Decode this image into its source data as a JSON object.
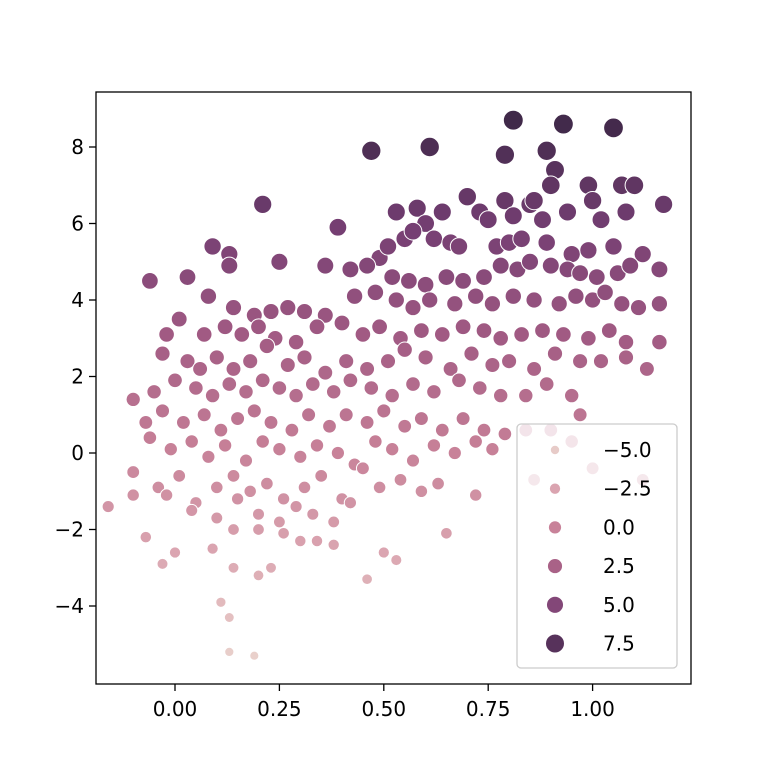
{
  "chart_data": {
    "type": "scatter",
    "title": "",
    "xlabel": "",
    "ylabel": "",
    "xlim": [
      -0.2,
      1.2
    ],
    "ylim": [
      -6,
      9.5
    ],
    "x_ticks": [
      0.0,
      0.25,
      0.5,
      0.75,
      1.0
    ],
    "x_tick_labels": [
      "0.00",
      "0.25",
      "0.50",
      "0.75",
      "1.00"
    ],
    "y_ticks": [
      -4,
      -2,
      0,
      2,
      4,
      6,
      8
    ],
    "y_tick_labels": [
      "−4",
      "−2",
      "0",
      "2",
      "4",
      "6",
      "8"
    ],
    "grid": false,
    "legend": {
      "placement": "lower right",
      "entries": [
        {
          "label": "−5.0",
          "value": -5.0
        },
        {
          "label": "−2.5",
          "value": -2.5
        },
        {
          "label": "0.0",
          "value": 0.0
        },
        {
          "label": "2.5",
          "value": 2.5
        },
        {
          "label": "5.0",
          "value": 5.0
        },
        {
          "label": "7.5",
          "value": 7.5
        }
      ]
    },
    "hue_size_encodes": "y",
    "colormap": [
      "#ead3cd",
      "#dba6b1",
      "#c67f97",
      "#a15a83",
      "#743e72",
      "#3e2848"
    ],
    "points": [
      [
        -0.06,
        4.5
      ],
      [
        0.03,
        4.6
      ],
      [
        0.09,
        5.4
      ],
      [
        0.13,
        5.2
      ],
      [
        0.13,
        4.9
      ],
      [
        0.21,
        6.5
      ],
      [
        0.25,
        5.0
      ],
      [
        0.36,
        4.9
      ],
      [
        0.39,
        5.9
      ],
      [
        0.47,
        7.9
      ],
      [
        0.61,
        8.0
      ],
      [
        0.81,
        8.7
      ],
      [
        0.93,
        8.6
      ],
      [
        1.05,
        8.5
      ],
      [
        0.79,
        7.8
      ],
      [
        0.89,
        7.9
      ],
      [
        0.91,
        7.4
      ],
      [
        0.9,
        7.0
      ],
      [
        0.99,
        7.0
      ],
      [
        1.07,
        7.0
      ],
      [
        1.1,
        7.0
      ],
      [
        1.17,
        6.5
      ],
      [
        0.7,
        6.7
      ],
      [
        0.79,
        6.6
      ],
      [
        0.85,
        6.5
      ],
      [
        0.86,
        6.6
      ],
      [
        0.94,
        6.3
      ],
      [
        1.0,
        6.6
      ],
      [
        1.08,
        6.3
      ],
      [
        0.53,
        6.3
      ],
      [
        0.58,
        6.4
      ],
      [
        0.6,
        6.0
      ],
      [
        0.64,
        6.3
      ],
      [
        0.73,
        6.3
      ],
      [
        0.75,
        6.1
      ],
      [
        0.81,
        6.2
      ],
      [
        0.88,
        6.1
      ],
      [
        1.02,
        6.1
      ],
      [
        0.49,
        5.1
      ],
      [
        0.51,
        5.4
      ],
      [
        0.55,
        5.6
      ],
      [
        0.57,
        5.8
      ],
      [
        0.62,
        5.6
      ],
      [
        0.66,
        5.5
      ],
      [
        0.68,
        5.4
      ],
      [
        0.77,
        5.4
      ],
      [
        0.8,
        5.5
      ],
      [
        0.83,
        5.6
      ],
      [
        0.89,
        5.5
      ],
      [
        0.95,
        5.2
      ],
      [
        0.99,
        5.3
      ],
      [
        1.05,
        5.4
      ],
      [
        1.12,
        5.2
      ],
      [
        0.42,
        4.8
      ],
      [
        0.46,
        4.9
      ],
      [
        0.52,
        4.6
      ],
      [
        0.56,
        4.5
      ],
      [
        0.6,
        4.4
      ],
      [
        0.65,
        4.6
      ],
      [
        0.69,
        4.5
      ],
      [
        0.74,
        4.6
      ],
      [
        0.78,
        4.9
      ],
      [
        0.82,
        4.8
      ],
      [
        0.85,
        5.0
      ],
      [
        0.9,
        4.9
      ],
      [
        0.94,
        4.8
      ],
      [
        0.97,
        4.7
      ],
      [
        1.01,
        4.6
      ],
      [
        1.06,
        4.7
      ],
      [
        1.09,
        4.9
      ],
      [
        1.16,
        4.8
      ],
      [
        0.08,
        4.1
      ],
      [
        0.14,
        3.8
      ],
      [
        0.19,
        3.6
      ],
      [
        0.23,
        3.7
      ],
      [
        0.27,
        3.8
      ],
      [
        0.31,
        3.7
      ],
      [
        0.36,
        3.6
      ],
      [
        0.43,
        4.1
      ],
      [
        0.48,
        4.2
      ],
      [
        0.53,
        4.0
      ],
      [
        0.57,
        3.8
      ],
      [
        0.61,
        4.0
      ],
      [
        0.67,
        3.9
      ],
      [
        0.72,
        4.1
      ],
      [
        0.76,
        3.9
      ],
      [
        0.81,
        4.1
      ],
      [
        0.86,
        4.0
      ],
      [
        0.92,
        3.9
      ],
      [
        0.96,
        4.1
      ],
      [
        1.0,
        4.0
      ],
      [
        1.03,
        4.2
      ],
      [
        1.07,
        3.9
      ],
      [
        1.11,
        3.8
      ],
      [
        1.16,
        3.9
      ],
      [
        -0.02,
        3.1
      ],
      [
        0.01,
        3.5
      ],
      [
        0.07,
        3.1
      ],
      [
        0.12,
        3.3
      ],
      [
        0.16,
        3.1
      ],
      [
        0.2,
        3.3
      ],
      [
        0.24,
        3.0
      ],
      [
        0.29,
        2.9
      ],
      [
        0.34,
        3.3
      ],
      [
        0.4,
        3.4
      ],
      [
        0.45,
        3.1
      ],
      [
        0.49,
        3.3
      ],
      [
        0.54,
        3.0
      ],
      [
        0.59,
        3.2
      ],
      [
        0.64,
        3.1
      ],
      [
        0.69,
        3.3
      ],
      [
        0.74,
        3.2
      ],
      [
        0.78,
        3.0
      ],
      [
        0.83,
        3.1
      ],
      [
        0.88,
        3.2
      ],
      [
        0.93,
        3.1
      ],
      [
        0.99,
        3.0
      ],
      [
        1.04,
        3.2
      ],
      [
        1.08,
        2.9
      ],
      [
        1.16,
        2.9
      ],
      [
        -0.03,
        2.6
      ],
      [
        0.03,
        2.4
      ],
      [
        0.06,
        2.2
      ],
      [
        0.1,
        2.5
      ],
      [
        0.14,
        2.2
      ],
      [
        0.18,
        2.4
      ],
      [
        0.22,
        2.8
      ],
      [
        0.27,
        2.3
      ],
      [
        0.31,
        2.5
      ],
      [
        0.36,
        2.1
      ],
      [
        0.41,
        2.4
      ],
      [
        0.46,
        2.2
      ],
      [
        0.51,
        2.4
      ],
      [
        0.55,
        2.7
      ],
      [
        0.6,
        2.5
      ],
      [
        0.66,
        2.2
      ],
      [
        0.71,
        2.6
      ],
      [
        0.76,
        2.3
      ],
      [
        0.8,
        2.4
      ],
      [
        0.86,
        2.2
      ],
      [
        0.91,
        2.6
      ],
      [
        0.97,
        2.4
      ],
      [
        1.02,
        2.4
      ],
      [
        1.08,
        2.5
      ],
      [
        1.13,
        2.2
      ],
      [
        -0.1,
        1.4
      ],
      [
        -0.05,
        1.6
      ],
      [
        0.0,
        1.9
      ],
      [
        0.05,
        1.7
      ],
      [
        0.09,
        1.5
      ],
      [
        0.13,
        1.8
      ],
      [
        0.17,
        1.6
      ],
      [
        0.21,
        1.9
      ],
      [
        0.25,
        1.7
      ],
      [
        0.29,
        1.5
      ],
      [
        0.33,
        1.8
      ],
      [
        0.38,
        1.6
      ],
      [
        0.42,
        1.9
      ],
      [
        0.47,
        1.7
      ],
      [
        0.52,
        1.5
      ],
      [
        0.57,
        1.8
      ],
      [
        0.62,
        1.6
      ],
      [
        0.68,
        1.9
      ],
      [
        0.73,
        1.7
      ],
      [
        0.78,
        1.5
      ],
      [
        0.84,
        1.5
      ],
      [
        0.89,
        1.8
      ],
      [
        0.95,
        1.5
      ],
      [
        -0.07,
        0.8
      ],
      [
        -0.03,
        1.1
      ],
      [
        0.02,
        0.8
      ],
      [
        0.07,
        1.0
      ],
      [
        0.11,
        0.6
      ],
      [
        0.15,
        0.9
      ],
      [
        0.19,
        1.1
      ],
      [
        0.23,
        0.8
      ],
      [
        0.28,
        0.6
      ],
      [
        0.32,
        1.0
      ],
      [
        0.37,
        0.7
      ],
      [
        0.41,
        1.0
      ],
      [
        0.46,
        0.8
      ],
      [
        0.5,
        1.1
      ],
      [
        0.55,
        0.7
      ],
      [
        0.59,
        0.9
      ],
      [
        0.64,
        0.6
      ],
      [
        0.69,
        0.9
      ],
      [
        0.74,
        0.6
      ],
      [
        0.79,
        0.5
      ],
      [
        0.84,
        0.6
      ],
      [
        0.9,
        0.6
      ],
      [
        0.97,
        1.0
      ],
      [
        -0.06,
        0.4
      ],
      [
        -0.01,
        0.1
      ],
      [
        0.04,
        0.3
      ],
      [
        0.08,
        -0.1
      ],
      [
        0.12,
        0.2
      ],
      [
        0.17,
        -0.2
      ],
      [
        0.21,
        0.3
      ],
      [
        0.25,
        0.1
      ],
      [
        0.3,
        -0.1
      ],
      [
        0.34,
        0.2
      ],
      [
        0.39,
        0.0
      ],
      [
        0.43,
        -0.3
      ],
      [
        0.48,
        0.3
      ],
      [
        0.52,
        0.1
      ],
      [
        0.57,
        -0.2
      ],
      [
        0.62,
        0.2
      ],
      [
        0.67,
        0.0
      ],
      [
        0.72,
        0.3
      ],
      [
        0.76,
        0.1
      ],
      [
        0.95,
        0.3
      ],
      [
        -0.1,
        -0.5
      ],
      [
        -0.04,
        -0.9
      ],
      [
        0.01,
        -0.6
      ],
      [
        0.05,
        -1.3
      ],
      [
        0.1,
        -0.9
      ],
      [
        0.14,
        -0.6
      ],
      [
        0.18,
        -1.0
      ],
      [
        0.22,
        -0.8
      ],
      [
        0.26,
        -1.2
      ],
      [
        0.31,
        -0.9
      ],
      [
        0.35,
        -0.6
      ],
      [
        0.4,
        -1.2
      ],
      [
        0.45,
        -0.4
      ],
      [
        0.49,
        -0.9
      ],
      [
        0.54,
        -0.7
      ],
      [
        0.59,
        -1.0
      ],
      [
        0.63,
        -0.8
      ],
      [
        0.72,
        -1.1
      ],
      [
        0.86,
        -0.7
      ],
      [
        1.0,
        -0.4
      ],
      [
        1.12,
        -0.7
      ],
      [
        -0.16,
        -1.4
      ],
      [
        -0.1,
        -1.1
      ],
      [
        -0.02,
        -1.1
      ],
      [
        0.04,
        -1.5
      ],
      [
        0.1,
        -1.7
      ],
      [
        0.15,
        -1.2
      ],
      [
        0.2,
        -1.6
      ],
      [
        0.25,
        -1.8
      ],
      [
        0.29,
        -1.4
      ],
      [
        0.33,
        -1.6
      ],
      [
        0.38,
        -1.8
      ],
      [
        0.42,
        -1.3
      ],
      [
        0.65,
        -2.1
      ],
      [
        -0.07,
        -2.2
      ],
      [
        0.0,
        -2.6
      ],
      [
        0.09,
        -2.5
      ],
      [
        0.14,
        -2.0
      ],
      [
        0.2,
        -2.0
      ],
      [
        0.26,
        -2.1
      ],
      [
        0.3,
        -2.3
      ],
      [
        0.34,
        -2.3
      ],
      [
        0.38,
        -2.4
      ],
      [
        -0.03,
        -2.9
      ],
      [
        0.14,
        -3.0
      ],
      [
        0.2,
        -3.2
      ],
      [
        0.23,
        -3.0
      ],
      [
        0.5,
        -2.6
      ],
      [
        0.53,
        -2.8
      ],
      [
        0.46,
        -3.3
      ],
      [
        0.11,
        -3.9
      ],
      [
        0.13,
        -4.3
      ],
      [
        0.13,
        -5.2
      ],
      [
        0.19,
        -5.3
      ]
    ]
  }
}
